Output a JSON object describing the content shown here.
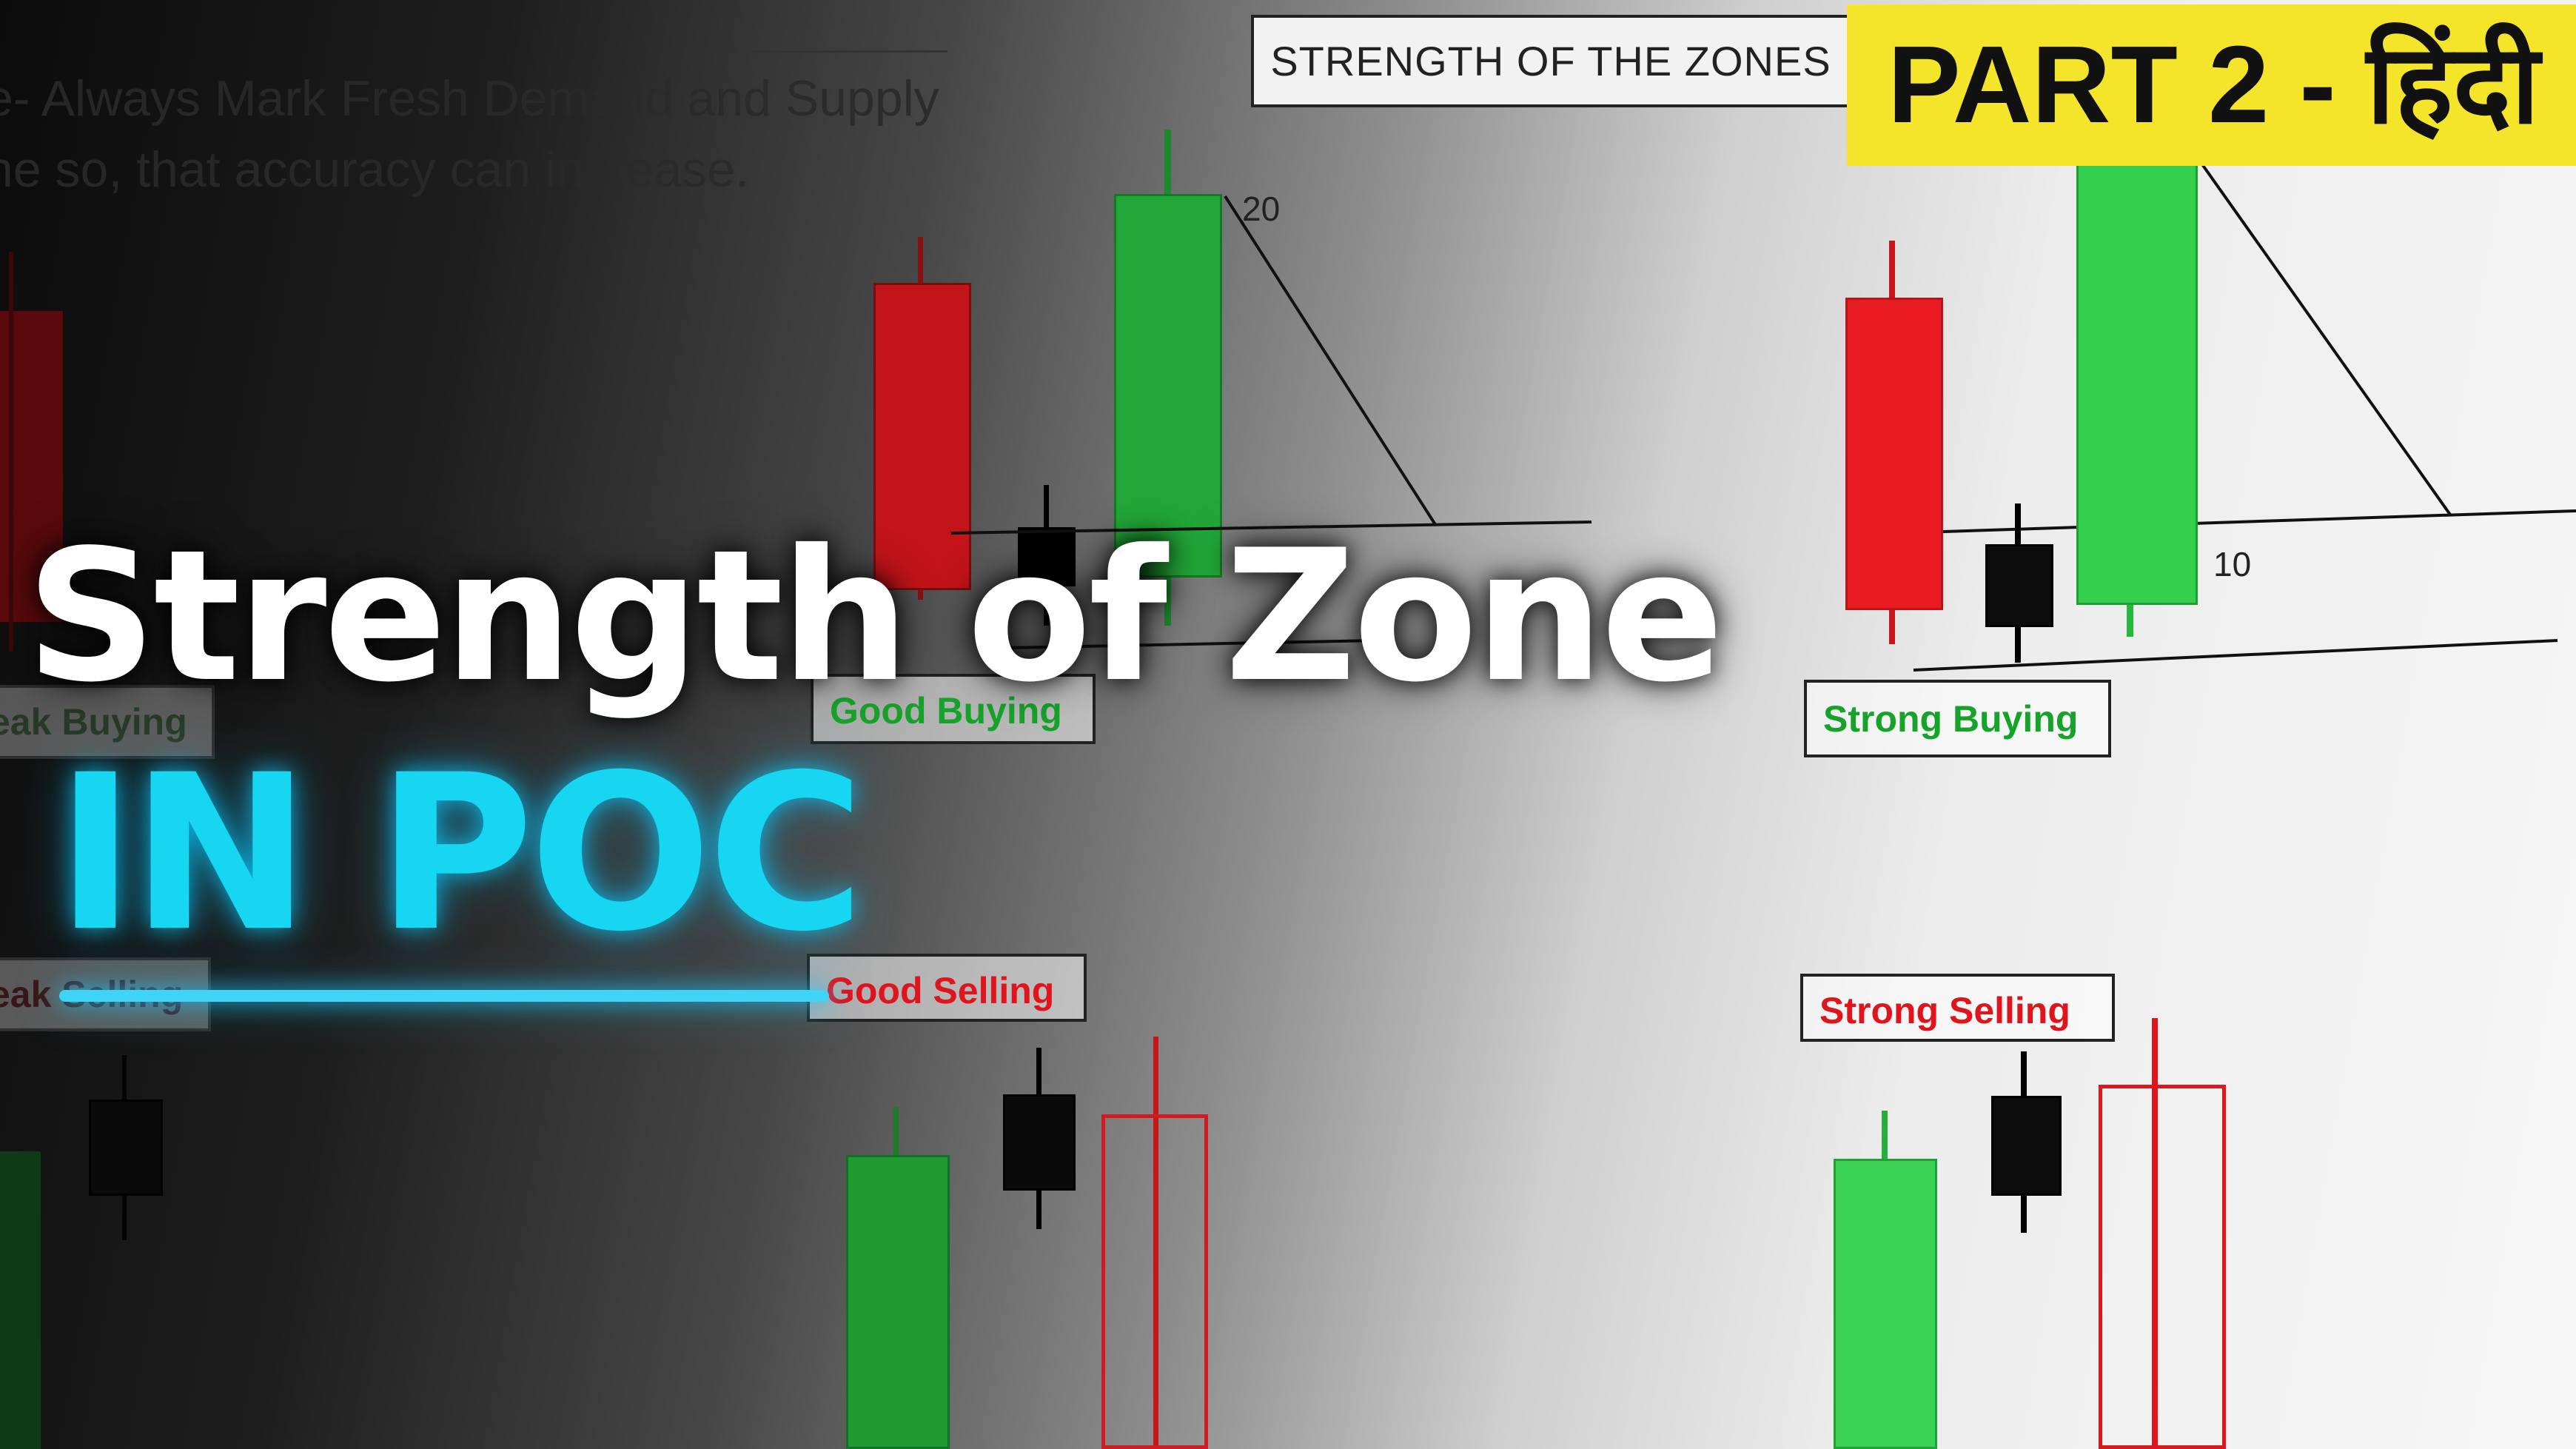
{
  "note_lines": [
    "e- Always Mark Fresh Demand and Supply",
    "ne so, that accuracy can increase."
  ],
  "zone_header": "STRENGTH OF THE ZONES",
  "part_banner": "PART 2 - हिंदी",
  "headline": "Strength of Zone",
  "subheadline": "IN POC",
  "level_labels": {
    "upper": "20",
    "lower": "10",
    "lower_right": "10"
  },
  "zone_labels": {
    "weak_buying": "eak Buying",
    "weak_selling": "eak Selling",
    "good_buying": "Good Buying",
    "good_selling": "Good Selling",
    "strong_buying": "Strong Buying",
    "strong_selling": "Strong Selling"
  },
  "colors": {
    "bull": "#1fb33a",
    "bull_bright": "#2fd24a",
    "bear": "#d81b20",
    "neutral": "#111111",
    "headline": "#ffffff",
    "subheadline": "#16d6f2",
    "banner": "#f4e52a"
  }
}
